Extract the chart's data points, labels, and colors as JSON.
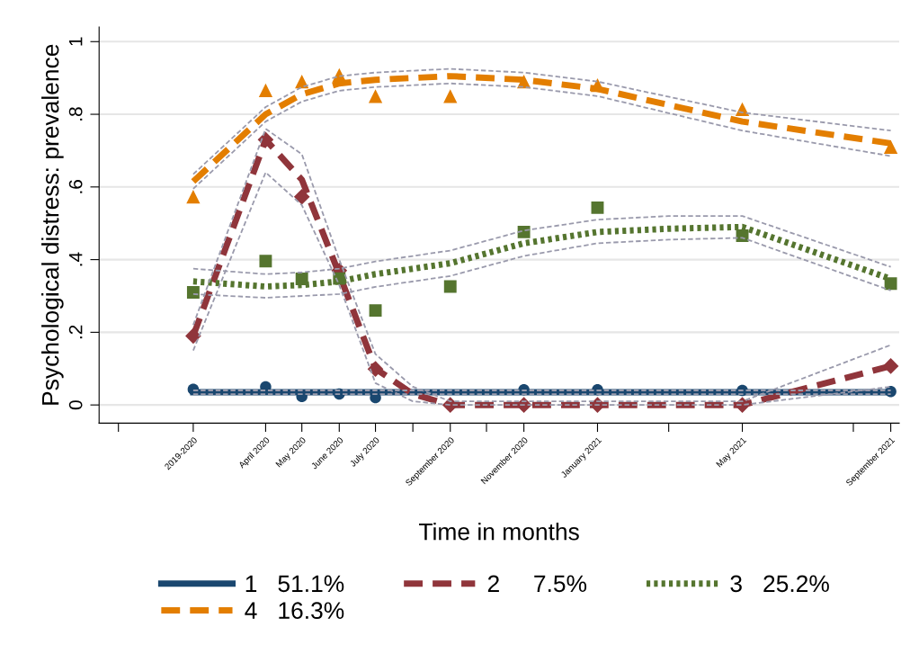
{
  "chart_data": {
    "type": "line",
    "xlabel": "Time in months",
    "ylabel": "Psychological distress: prevalence",
    "xlim": [
      "2019-11-15",
      "2021-09-08"
    ],
    "ylim": [
      -0.05,
      1.04
    ],
    "xticks": [
      {
        "value": "2019-12",
        "label": null
      },
      {
        "value": "2020-02",
        "label": "2019-2020"
      },
      {
        "value": "2020-04",
        "label": "April 2020"
      },
      {
        "value": "2020-05",
        "label": "May 2020"
      },
      {
        "value": "2020-06",
        "label": "June 2020"
      },
      {
        "value": "2020-07",
        "label": "July 2020"
      },
      {
        "value": "2020-08",
        "label": null
      },
      {
        "value": "2020-09",
        "label": "September 2020"
      },
      {
        "value": "2020-10",
        "label": null
      },
      {
        "value": "2020-11",
        "label": "November 2020"
      },
      {
        "value": "2021-01",
        "label": "January 2021"
      },
      {
        "value": "2021-03",
        "label": null
      },
      {
        "value": "2021-05",
        "label": "May 2021"
      },
      {
        "value": "2021-08",
        "label": null
      },
      {
        "value": "2021-09",
        "label": "September 2021"
      }
    ],
    "yticks": [
      0,
      {
        "value": 0.2,
        "label": ".2"
      },
      {
        "value": 0.4,
        "label": ".4"
      },
      {
        "value": 0.6,
        "label": ".6"
      },
      {
        "value": 0.8,
        "label": ".8"
      },
      1
    ],
    "grid": "y",
    "legend": "bottom",
    "series": [
      {
        "color": "#9a9aac",
        "line_style": "dashed",
        "x": [
          "2020-02",
          "2021-09"
        ],
        "values": [
          0.03,
          0.03
        ]
      },
      {
        "color": "#9a9aac",
        "line_style": "dashed",
        "x": [
          "2020-02",
          "2021-09"
        ],
        "values": [
          0.04,
          0.04
        ]
      },
      {
        "color": "#9a9aac",
        "line_style": "dashed",
        "x": [
          "2020-02",
          "2020-04",
          "2020-05",
          "2020-06",
          "2020-07",
          "2020-08",
          "2020-09",
          "2020-11",
          "2021-01",
          "2021-05",
          "2021-09"
        ],
        "values": [
          0.15,
          0.64,
          0.55,
          0.33,
          0.06,
          0.01,
          0,
          0,
          0,
          0,
          0.05
        ]
      },
      {
        "color": "#9a9aac",
        "line_style": "dashed",
        "x": [
          "2020-02",
          "2020-04",
          "2020-05",
          "2020-06",
          "2020-07",
          "2020-08",
          "2020-09",
          "2020-11",
          "2021-01",
          "2021-05",
          "2021-09"
        ],
        "values": [
          0.22,
          0.76,
          0.69,
          0.4,
          0.14,
          0.05,
          0.01,
          0.01,
          0.01,
          0.01,
          0.165
        ]
      },
      {
        "color": "#9a9aac",
        "line_style": "dashed",
        "x": [
          "2020-02",
          "2020-04",
          "2020-05",
          "2020-06",
          "2020-07",
          "2020-09",
          "2020-11",
          "2021-01",
          "2021-03",
          "2021-05",
          "2021-09"
        ],
        "values": [
          0.305,
          0.295,
          0.3,
          0.305,
          0.325,
          0.355,
          0.41,
          0.445,
          0.455,
          0.46,
          0.315
        ]
      },
      {
        "color": "#9a9aac",
        "line_style": "dashed",
        "x": [
          "2020-02",
          "2020-04",
          "2020-05",
          "2020-06",
          "2020-07",
          "2020-09",
          "2020-11",
          "2021-01",
          "2021-03",
          "2021-05",
          "2021-09"
        ],
        "values": [
          0.375,
          0.36,
          0.365,
          0.375,
          0.395,
          0.425,
          0.48,
          0.51,
          0.52,
          0.52,
          0.38
        ]
      },
      {
        "color": "#9a9aac",
        "line_style": "dashed",
        "x": [
          "2020-02",
          "2020-04",
          "2020-05",
          "2020-06",
          "2020-07",
          "2020-09",
          "2020-11",
          "2021-01",
          "2021-05",
          "2021-09"
        ],
        "values": [
          0.595,
          0.78,
          0.835,
          0.865,
          0.875,
          0.885,
          0.875,
          0.85,
          0.755,
          0.685
        ]
      },
      {
        "color": "#9a9aac",
        "line_style": "dashed",
        "x": [
          "2020-02",
          "2020-04",
          "2020-05",
          "2020-06",
          "2020-07",
          "2020-09",
          "2020-11",
          "2021-01",
          "2021-05",
          "2021-09"
        ],
        "values": [
          0.635,
          0.82,
          0.875,
          0.905,
          0.915,
          0.925,
          0.915,
          0.89,
          0.805,
          0.755
        ]
      },
      {
        "name": "1   51.1%",
        "color": "#1a476f",
        "line_style": "solid",
        "x": [
          "2020-02",
          "2021-09"
        ],
        "values": [
          0.035,
          0.035
        ]
      },
      {
        "name": "2     7.5%",
        "color": "#90353b",
        "line_style": "dashed",
        "x": [
          "2020-02",
          "2020-04",
          "2020-05",
          "2020-06",
          "2020-07",
          "2020-08",
          "2020-09",
          "2020-11",
          "2021-01",
          "2021-05",
          "2021-09"
        ],
        "values": [
          0.19,
          0.73,
          0.62,
          0.36,
          0.1,
          0.03,
          0,
          0,
          0,
          0,
          0.107
        ]
      },
      {
        "name": "3   25.2%",
        "color": "#55752f",
        "line_style": "dotted",
        "x": [
          "2020-02",
          "2020-04",
          "2020-05",
          "2020-06",
          "2020-07",
          "2020-09",
          "2020-11",
          "2021-01",
          "2021-03",
          "2021-05",
          "2021-09"
        ],
        "values": [
          0.34,
          0.326,
          0.33,
          0.34,
          0.36,
          0.39,
          0.445,
          0.476,
          0.485,
          0.49,
          0.347
        ]
      },
      {
        "name": "4   16.3%",
        "color": "#e37e00",
        "line_style": "dashed",
        "x": [
          "2020-02",
          "2020-04",
          "2020-05",
          "2020-06",
          "2020-07",
          "2020-09",
          "2020-11",
          "2021-01",
          "2021-05",
          "2021-09"
        ],
        "values": [
          0.615,
          0.8,
          0.855,
          0.885,
          0.895,
          0.905,
          0.895,
          0.87,
          0.78,
          0.72
        ]
      },
      {
        "color": "#1a476f",
        "type": "scatter",
        "marker": "circle",
        "x": [
          "2020-02",
          "2020-04",
          "2020-05",
          "2020-06",
          "2020-07",
          "2020-09",
          "2020-11",
          "2021-01",
          "2021-05",
          "2021-09"
        ],
        "values": [
          0.043,
          0.05,
          0.023,
          0.03,
          0.02,
          null,
          0.042,
          0.042,
          0.04,
          0.037
        ]
      },
      {
        "color": "#90353b",
        "type": "scatter",
        "marker": "diamond",
        "x": [
          "2020-02",
          "2020-04",
          "2020-05",
          "2020-06",
          "2020-07",
          "2020-09",
          "2020-11",
          "2021-01",
          "2021-05",
          "2021-09"
        ],
        "values": [
          0.19,
          0.73,
          0.573,
          0.37,
          0.099,
          0,
          0,
          0,
          0,
          0.107
        ]
      },
      {
        "color": "#55752f",
        "type": "scatter",
        "marker": "square",
        "x": [
          "2020-02",
          "2020-04",
          "2020-05",
          "2020-06",
          "2020-07",
          "2020-09",
          "2020-11",
          "2021-01",
          "2021-05",
          "2021-09"
        ],
        "values": [
          0.31,
          0.396,
          0.347,
          0.348,
          0.26,
          0.326,
          0.476,
          0.543,
          0.466,
          0.334
        ]
      },
      {
        "color": "#e37e00",
        "type": "scatter",
        "marker": "triangle",
        "x": [
          "2020-02",
          "2020-04",
          "2020-05",
          "2020-06",
          "2020-07",
          "2020-09",
          "2020-11",
          "2021-01",
          "2021-05",
          "2021-09"
        ],
        "values": [
          0.573,
          0.866,
          0.89,
          0.908,
          0.85,
          0.85,
          0.89,
          0.88,
          0.814,
          0.71
        ]
      }
    ]
  }
}
